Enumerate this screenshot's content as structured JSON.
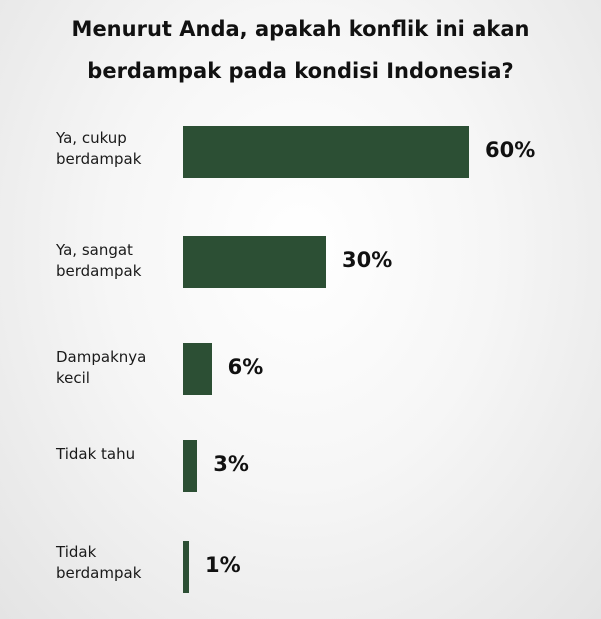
{
  "chart_data": {
    "type": "bar",
    "orientation": "horizontal",
    "title_lines": [
      "Menurut Anda, apakah konflik ini akan",
      "berdampak pada kondisi Indonesia?"
    ],
    "categories": [
      [
        "Ya, cukup",
        "berdampak"
      ],
      [
        "Ya, sangat",
        "berdampak"
      ],
      [
        "Dampaknya",
        "kecil"
      ],
      [
        "Tidak tahu"
      ],
      [
        "Tidak",
        "berdampak"
      ]
    ],
    "values": [
      60,
      30,
      6,
      3,
      1
    ],
    "value_labels": [
      "60%",
      "30%",
      "6%",
      "3%",
      "1%"
    ],
    "xlim": [
      0,
      60
    ],
    "grid": false,
    "legend": "none",
    "bar_color": "#2c4f34"
  }
}
